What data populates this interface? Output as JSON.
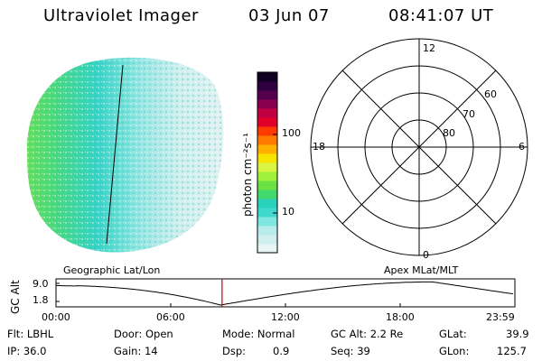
{
  "header": {
    "instrument": "Ultraviolet Imager",
    "date": "03 Jun 07",
    "time": "08:41:07 UT"
  },
  "colorbar": {
    "unit_label": "photon cm⁻²s⁻¹",
    "tick_100": "100",
    "tick_10": "10",
    "colors": [
      "#e6f4f4",
      "#cfeeee",
      "#b8ecec",
      "#7fe6e0",
      "#3fd8cc",
      "#2ad1bb",
      "#44d96c",
      "#6be042",
      "#9ef03a",
      "#d8f541",
      "#f7e400",
      "#ffb100",
      "#ff7a00",
      "#ff3a00",
      "#e1002a",
      "#c00040",
      "#8a0050",
      "#55004f",
      "#2e0040",
      "#10001f"
    ]
  },
  "polar": {
    "mlt_12": "12",
    "mlt_18": "18",
    "mlt_6": "6",
    "mlt_0": "0",
    "lat_60": "60",
    "lat_70": "70",
    "lat_80": "80"
  },
  "panel_labels": {
    "left": "Geographic Lat/Lon",
    "right": "Apex  MLat/MLT"
  },
  "altitude_plot": {
    "ylabel": "GC Alt",
    "y_top": "9.0",
    "y_bottom": "1.8",
    "x_ticks": [
      "00:00",
      "06:00",
      "12:00",
      "18:00",
      "23:59"
    ],
    "current_marker_hours": 8.685,
    "curve_color": "#000000",
    "marker_color": "#cc0000"
  },
  "info": {
    "flt": "Flt: LBHL",
    "ip": "IP: 36.0",
    "door": "Door: Open",
    "gain": "Gain: 14",
    "mode": "Mode: Normal",
    "dsp_label": "Dsp:",
    "dsp_value": "0.9",
    "gc_alt": "GC Alt: 2.2 Re",
    "seq": "Seq: 39",
    "glat_label": "GLat:",
    "glat_value": "39.9",
    "glon_label": "GLon:",
    "glon_value": "125.7"
  }
}
